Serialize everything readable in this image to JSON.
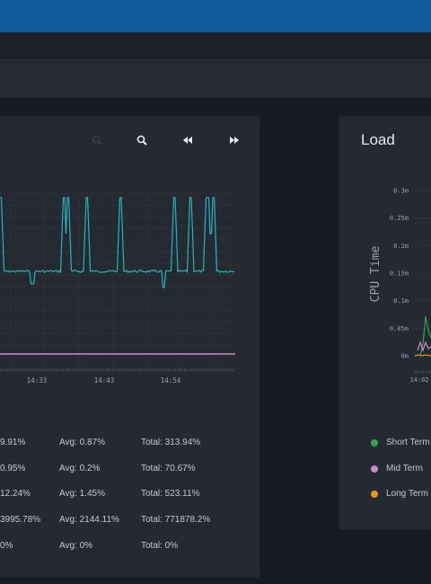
{
  "colors": {
    "header": "#0e5a9a",
    "panel_bg": "#242932",
    "cpu_line": "#27b3bb",
    "pink_line": "#c98ac7",
    "short_term": "#35a44a",
    "mid_term": "#c98ac7",
    "long_term": "#e8950e"
  },
  "toolbar": {
    "icons": [
      "zoom-out-icon",
      "zoom-in-icon",
      "rewind-icon",
      "fast-forward-icon"
    ]
  },
  "left_chart": {
    "chart_data": {
      "type": "line",
      "x_ticks": [
        "14:33",
        "14:43",
        "14:54"
      ],
      "grid": true,
      "series": [
        {
          "color": "#27b3bb",
          "baseline": 0.87,
          "spike_positions": [
            0.0,
            0.27,
            0.29,
            0.37,
            0.51,
            0.74,
            0.81,
            0.88,
            0.91
          ]
        },
        {
          "color": "#c98ac7",
          "value": 0.0
        }
      ]
    }
  },
  "stats": {
    "rows": [
      {
        "max": "9.91%",
        "avg": "Avg: 0.87%",
        "total": "Total: 313.94%"
      },
      {
        "max": "0.95%",
        "avg": "Avg: 0.2%",
        "total": "Total: 70.67%"
      },
      {
        "max": "12.24%",
        "avg": "Avg: 1.45%",
        "total": "Total: 523.11%"
      },
      {
        "max": "3995.78%",
        "avg": "Avg: 2144.11%",
        "total": "Total: 771878.2%"
      },
      {
        "max": "0%",
        "avg": "Avg: 0%",
        "total": "Total: 0%"
      }
    ]
  },
  "load_panel": {
    "title": "Load",
    "chart_data": {
      "type": "line",
      "ylabel": "CPU Time",
      "y_ticks": [
        "0.3m",
        "0.25m",
        "0.2m",
        "0.15m",
        "0.1m",
        "0.05m",
        "0m"
      ],
      "x_ticks": [
        "14:02"
      ],
      "grid": true,
      "series": [
        {
          "name": "Short Term",
          "color": "#35a44a"
        },
        {
          "name": "Mid Term",
          "color": "#c98ac7"
        },
        {
          "name": "Long Term",
          "color": "#e8950e"
        }
      ]
    },
    "legend": [
      "Short Term",
      "Mid Term",
      "Long Term"
    ]
  }
}
